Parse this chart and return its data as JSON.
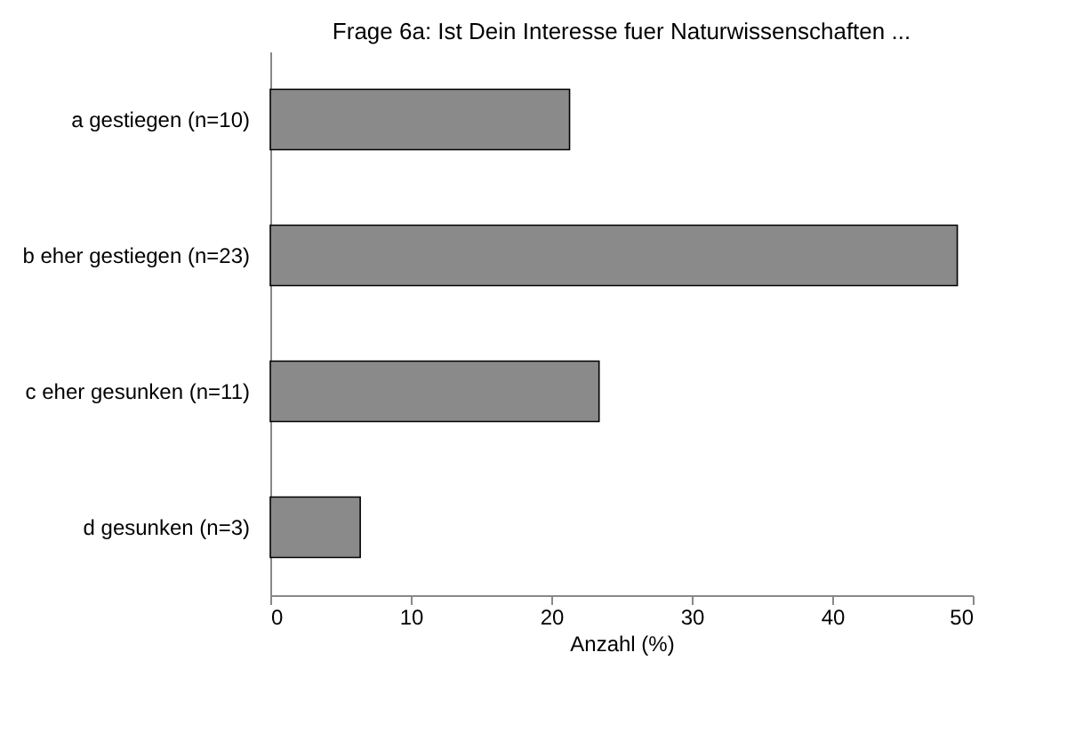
{
  "chart_data": {
    "type": "bar",
    "orientation": "horizontal",
    "title": "Frage 6a: Ist Dein Interesse fuer Naturwissenschaften ...",
    "xlabel": "Anzahl (%)",
    "categories": [
      "a gestiegen (n=10)",
      "b eher gestiegen (n=23)",
      "c eher gesunken (n=11)",
      "d gesunken (n=3)"
    ],
    "values": [
      21.3,
      48.9,
      23.4,
      6.4
    ],
    "color": "#8a8a8a",
    "xlim": [
      0,
      50
    ],
    "xticks": [
      0,
      10,
      20,
      30,
      40,
      50
    ],
    "grid": false
  }
}
